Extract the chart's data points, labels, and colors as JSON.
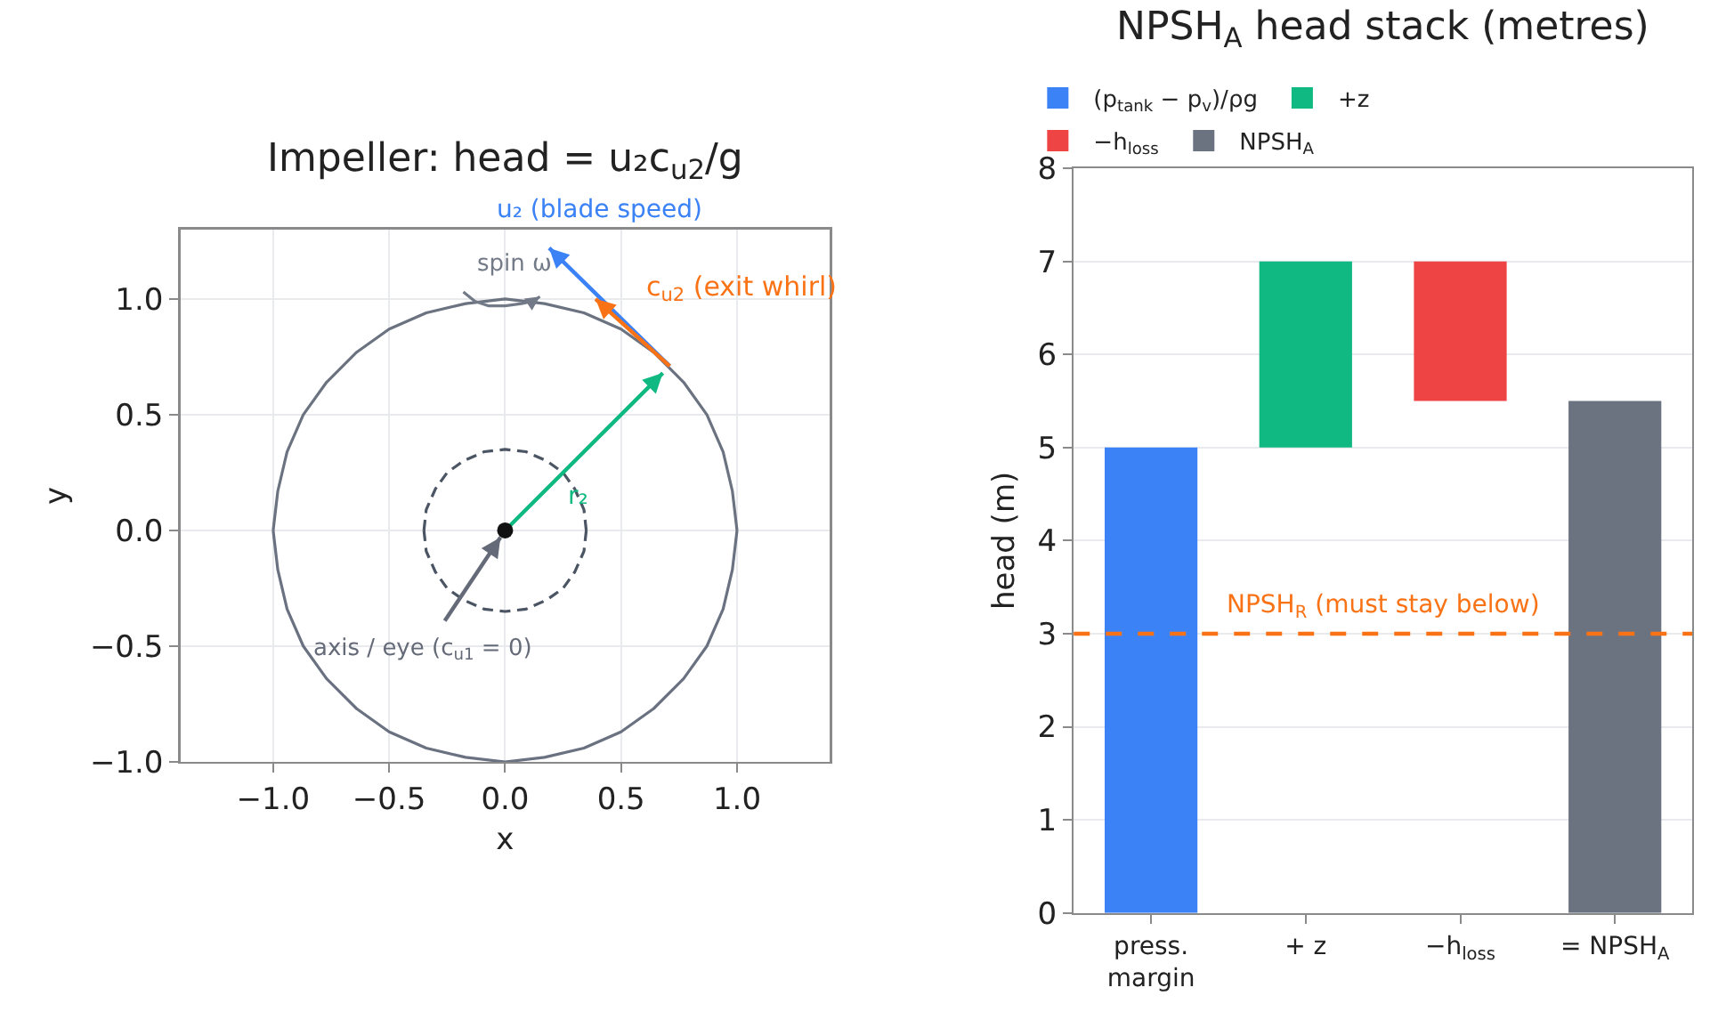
{
  "chart_data": [
    {
      "type": "line",
      "title": "Impeller: head = u₂c$_{u2}$/g",
      "xlabel": "x",
      "ylabel": "y",
      "xlim": [
        -1.4,
        1.4
      ],
      "ylim": [
        -1,
        1.3
      ],
      "xticks": [
        {
          "value": -1,
          "label": "−1.0"
        },
        {
          "value": -0.5,
          "label": "−0.5"
        },
        {
          "value": 0,
          "label": "0.0"
        },
        {
          "value": 0.5,
          "label": "0.5"
        },
        {
          "value": 1,
          "label": "1.0"
        }
      ],
      "yticks": [
        {
          "value": -1,
          "label": "−1.0"
        },
        {
          "value": -0.5,
          "label": "−0.5"
        },
        {
          "value": 0,
          "label": "0.0"
        },
        {
          "value": 0.5,
          "label": "0.5"
        },
        {
          "value": 1,
          "label": "1.0"
        }
      ],
      "grid": true,
      "series": [
        {
          "color": "#6b7280",
          "x": [
            -1,
            -0.98,
            -0.94,
            -0.87,
            -0.77,
            -0.64,
            -0.5,
            -0.34,
            -0.17,
            0,
            0.17,
            0.34,
            0.5,
            0.64,
            0.77,
            0.87,
            0.94,
            0.98,
            1
          ],
          "values": [
            0,
            0.17,
            0.34,
            0.5,
            0.64,
            0.77,
            0.87,
            0.94,
            0.98,
            1,
            0.98,
            0.94,
            0.87,
            0.77,
            0.64,
            0.5,
            0.34,
            0.17,
            0
          ]
        },
        {
          "color": "#6a7180",
          "x": [
            -1,
            -0.98,
            -0.94,
            -0.87,
            -0.77,
            -0.64,
            -0.5,
            -0.34,
            -0.17,
            0,
            0.17,
            0.34,
            0.5,
            0.64,
            0.77,
            0.87,
            0.94,
            0.98,
            1
          ],
          "values": [
            0,
            -0.17,
            -0.34,
            -0.5,
            -0.64,
            -0.77,
            -0.87,
            -0.94,
            -0.98,
            -1,
            -0.98,
            -0.94,
            -0.87,
            -0.77,
            -0.64,
            -0.5,
            -0.34,
            -0.17,
            0
          ]
        },
        {
          "color": "#4b5563",
          "line_style": "dashed",
          "x": [
            -0.35,
            -0.34,
            -0.3,
            -0.25,
            -0.18,
            -0.09,
            0,
            0.09,
            0.18,
            0.25,
            0.3,
            0.34,
            0.35
          ],
          "values": [
            0,
            0.09,
            0.18,
            0.25,
            0.3,
            0.34,
            0.35,
            0.34,
            0.3,
            0.25,
            0.18,
            0.09,
            0
          ]
        },
        {
          "color": "#4a5462",
          "line_style": "dashed",
          "x": [
            -0.35,
            -0.34,
            -0.3,
            -0.25,
            -0.18,
            -0.09,
            0,
            0.09,
            0.18,
            0.25,
            0.3,
            0.34,
            0.35
          ],
          "values": [
            0,
            -0.09,
            -0.18,
            -0.25,
            -0.3,
            -0.34,
            -0.35,
            -0.34,
            -0.3,
            -0.25,
            -0.18,
            -0.09,
            0
          ]
        },
        {
          "color": "#737a87",
          "x": [
            -0.18,
            -0.13,
            -0.07,
            0,
            0.07,
            0.12,
            0.15
          ],
          "values": [
            1.03,
            0.99,
            0.97,
            0.97,
            0.98,
            0.99,
            1.01
          ]
        },
        {
          "color": "#10b981",
          "x": [
            0,
            0.68
          ],
          "values": [
            0,
            0.68
          ]
        },
        {
          "color": "#3b82f6",
          "x": [
            0.71,
            0.19
          ],
          "values": [
            0.71,
            1.22
          ]
        },
        {
          "color": "#f97316",
          "x": [
            0.71,
            0.39
          ],
          "values": [
            0.71,
            1.0
          ]
        },
        {
          "color": "#646a77",
          "x": [
            -0.26,
            -0.02
          ],
          "values": [
            -0.39,
            -0.03
          ]
        },
        {
          "type": "scatter",
          "color": "#111111",
          "marker": "circle",
          "x": [
            0
          ],
          "values": [
            0
          ]
        }
      ],
      "annotations": [
        {
          "text": "u₂ (blade speed)",
          "x": 0.19,
          "y": 1.22
        },
        {
          "text": "c$_{u2}$ (exit whirl)",
          "x": 0.39,
          "y": 1.0
        },
        {
          "text": "spin ω",
          "x": 0,
          "y": 0.97
        },
        {
          "text": "r₂",
          "x": 0.34,
          "y": 0.34
        },
        {
          "text": "axis / eye (c$_{u1}$ = 0)",
          "x": -0.26,
          "y": -0.39
        }
      ]
    },
    {
      "type": "bar",
      "title": "NPSH$_{A}$ head stack (metres)",
      "ylabel": "head (m)",
      "categories": [
        "press.\nmargin",
        "+ z",
        "−h$_{loss}$",
        "= NPSH$_{A}$"
      ],
      "series": [
        {
          "name": "(p$_{tank}$ − p$_{v}$)/ρg",
          "color": "#3b82f6",
          "values": [
            5,
            null,
            null,
            null
          ],
          "base": [
            0,
            null,
            null,
            null
          ]
        },
        {
          "name": "+z",
          "color": "#10b981",
          "values": [
            null,
            2,
            null,
            null
          ],
          "base": [
            null,
            5,
            null,
            null
          ]
        },
        {
          "name": "−h$_{loss}$",
          "color": "#ef4444",
          "values": [
            null,
            null,
            -1.5,
            null
          ],
          "base": [
            null,
            null,
            7,
            null
          ]
        },
        {
          "name": "NPSH$_{A}$",
          "color": "#6b7280",
          "values": [
            null,
            null,
            null,
            5.5
          ],
          "base": [
            null,
            null,
            null,
            0
          ]
        }
      ],
      "ylim": [
        0,
        8
      ],
      "yticks": [
        0,
        1,
        2,
        3,
        4,
        5,
        6,
        7,
        8
      ],
      "grid": "y",
      "legend": "top",
      "ref_lines": [
        {
          "axis": "y",
          "value": 3,
          "label": "NPSH$_{R}$ (must stay below)",
          "color": "#f97316",
          "line_style": "dashed"
        }
      ]
    }
  ]
}
